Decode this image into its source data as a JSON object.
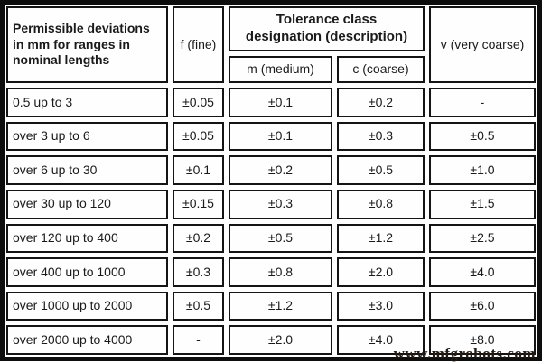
{
  "header": {
    "permissible": "Permissible deviations\nin mm for ranges in\nnominal lengths",
    "fine": "f (fine)",
    "tolerance_class": "Tolerance class\ndesignation (description)",
    "medium": "m (medium)",
    "coarse": "c (coarse)",
    "very_coarse": "v (very coarse)"
  },
  "rows": [
    {
      "range": "0.5 up to 3",
      "f": "±0.05",
      "m": "±0.1",
      "c": "±0.2",
      "v": "-"
    },
    {
      "range": "over 3 up to 6",
      "f": "±0.05",
      "m": "±0.1",
      "c": "±0.3",
      "v": "±0.5"
    },
    {
      "range": "over 6 up to 30",
      "f": "±0.1",
      "m": "±0.2",
      "c": "±0.5",
      "v": "±1.0"
    },
    {
      "range": "over 30 up to 120",
      "f": "±0.15",
      "m": "±0.3",
      "c": "±0.8",
      "v": "±1.5"
    },
    {
      "range": "over 120 up to 400",
      "f": "±0.2",
      "m": "±0.5",
      "c": "±1.2",
      "v": "±2.5"
    },
    {
      "range": "over 400 up to 1000",
      "f": "±0.3",
      "m": "±0.8",
      "c": "±2.0",
      "v": "±4.0"
    },
    {
      "range": "over 1000 up to 2000",
      "f": "±0.5",
      "m": "±1.2",
      "c": "±3.0",
      "v": "±6.0"
    },
    {
      "range": "over 2000 up to 4000",
      "f": "-",
      "m": "±2.0",
      "c": "±4.0",
      "v": "±8.0"
    }
  ],
  "watermark": "www.mfgrobots.com",
  "colors": {
    "outer_border": "#0d0d0d",
    "cell_border": "#141414",
    "text": "#1a1a1a",
    "background": "#ffffff",
    "watermark_text": "#241a12"
  },
  "chart_data": {
    "type": "table",
    "title": "Tolerance class designation (description)",
    "columns": [
      "Permissible deviations in mm for ranges in nominal lengths",
      "f (fine)",
      "m (medium)",
      "c (coarse)",
      "v (very coarse)"
    ],
    "column_group": {
      "label": "Tolerance class designation (description)",
      "spans": [
        "m (medium)",
        "c (coarse)"
      ]
    },
    "rows": [
      [
        "0.5 up to 3",
        "±0.05",
        "±0.1",
        "±0.2",
        "-"
      ],
      [
        "over 3 up to 6",
        "±0.05",
        "±0.1",
        "±0.3",
        "±0.5"
      ],
      [
        "over 6 up to 30",
        "±0.1",
        "±0.2",
        "±0.5",
        "±1.0"
      ],
      [
        "over 30 up to 120",
        "±0.15",
        "±0.3",
        "±0.8",
        "±1.5"
      ],
      [
        "over 120 up to 400",
        "±0.2",
        "±0.5",
        "±1.2",
        "±2.5"
      ],
      [
        "over 400 up to 1000",
        "±0.3",
        "±0.8",
        "±2.0",
        "±4.0"
      ],
      [
        "over 1000 up to 2000",
        "±0.5",
        "±1.2",
        "±3.0",
        "±6.0"
      ],
      [
        "over 2000 up to 4000",
        "-",
        "±2.0",
        "±4.0",
        "±8.0"
      ]
    ]
  }
}
